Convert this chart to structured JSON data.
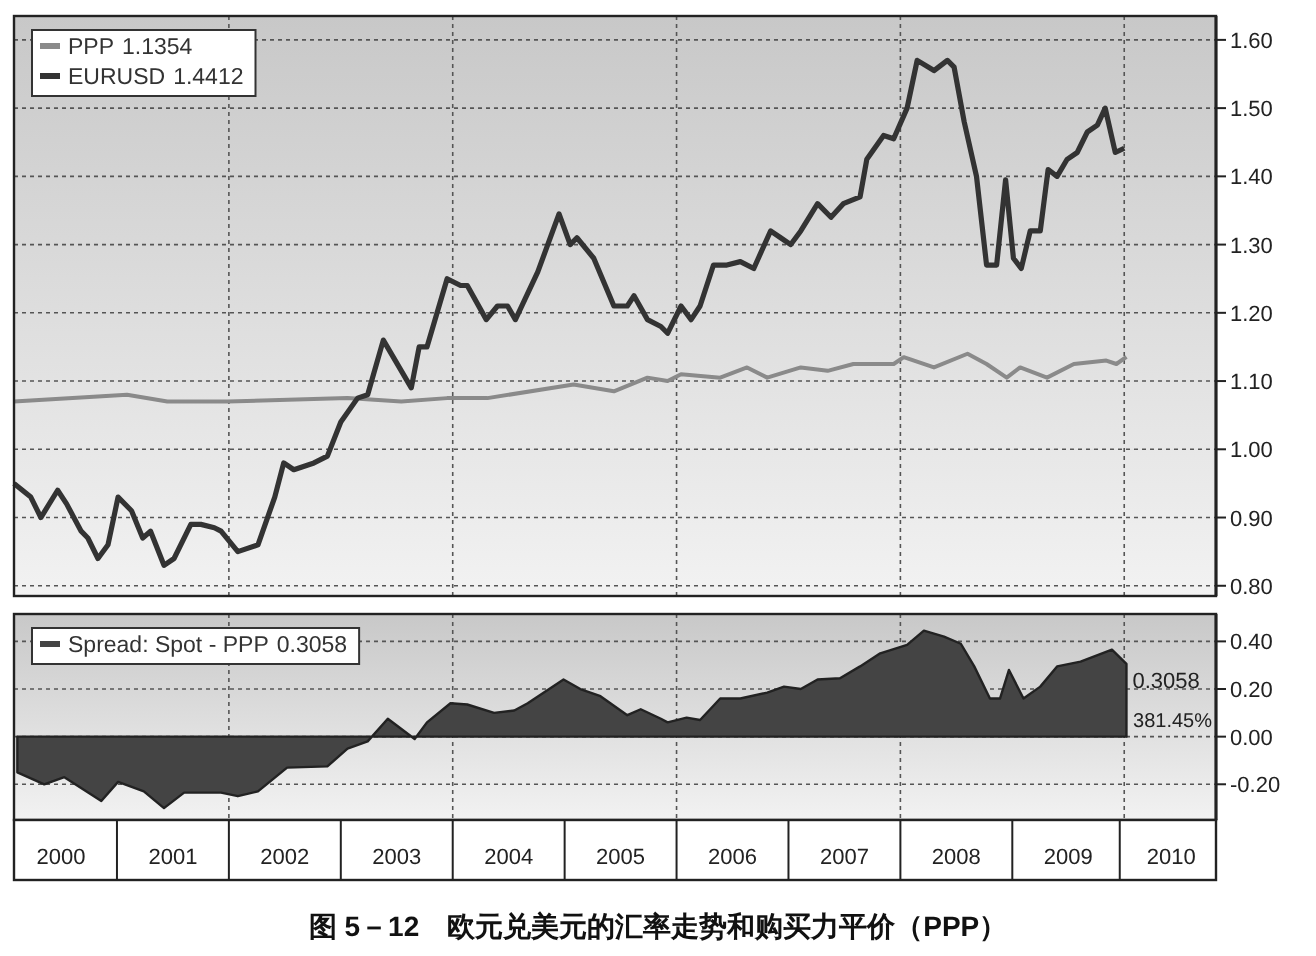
{
  "chart_data": [
    {
      "type": "line",
      "xlim": [
        2000.08,
        2010.82
      ],
      "ylim": [
        0.785,
        1.635
      ],
      "yticks": [
        {
          "value": 0.8,
          "label": "0.80"
        },
        {
          "value": 0.9,
          "label": "0.90"
        },
        {
          "value": 1.0,
          "label": "1.00"
        },
        {
          "value": 1.1,
          "label": "1.10"
        },
        {
          "value": 1.2,
          "label": "1.20"
        },
        {
          "value": 1.3,
          "label": "1.30"
        },
        {
          "value": 1.4,
          "label": "1.40"
        },
        {
          "value": 1.5,
          "label": "1.50"
        },
        {
          "value": 1.6,
          "label": "1.60"
        }
      ],
      "tick_labels": "y",
      "grid": "y",
      "legend": "top left",
      "line_style": "solid",
      "ref_lines": [
        {
          "axis": "x",
          "value": 2002,
          "line_style": "dotted"
        },
        {
          "axis": "x",
          "value": 2004,
          "line_style": "dotted"
        },
        {
          "axis": "x",
          "value": 2006,
          "line_style": "dotted"
        },
        {
          "axis": "x",
          "value": 2008,
          "line_style": "dotted"
        },
        {
          "axis": "x",
          "value": 2010,
          "line_style": "dotted"
        }
      ],
      "annotations": [
        "1.1354",
        "1.4412"
      ],
      "series": [
        {
          "name": "PPP",
          "color": "#8a8a8a",
          "x": [
            2000.08,
            2001.09,
            2001.45,
            2001.99,
            2003.06,
            2003.54,
            2003.95,
            2004.31,
            2005.08,
            2005.44,
            2005.74,
            2005.92,
            2006.04,
            2006.39,
            2006.63,
            2006.81,
            2007.11,
            2007.35,
            2007.58,
            2007.94,
            2008.03,
            2008.3,
            2008.6,
            2008.77,
            2008.95,
            2009.07,
            2009.31,
            2009.55,
            2009.84,
            2009.93,
            2010.02
          ],
          "values": [
            1.07,
            1.08,
            1.07,
            1.07,
            1.075,
            1.07,
            1.075,
            1.075,
            1.095,
            1.085,
            1.105,
            1.1,
            1.11,
            1.105,
            1.12,
            1.105,
            1.12,
            1.115,
            1.125,
            1.125,
            1.135,
            1.12,
            1.14,
            1.125,
            1.105,
            1.12,
            1.105,
            1.125,
            1.13,
            1.125,
            1.1354
          ]
        },
        {
          "name": "EURUSD",
          "color": "#333333",
          "x": [
            2000.08,
            2000.23,
            2000.32,
            2000.47,
            2000.55,
            2000.68,
            2000.74,
            2000.83,
            2000.92,
            2001.01,
            2001.13,
            2001.23,
            2001.3,
            2001.42,
            2001.51,
            2001.66,
            2001.75,
            2001.87,
            2001.93,
            2002.08,
            2002.26,
            2002.41,
            2002.49,
            2002.58,
            2002.76,
            2002.88,
            2003.0,
            2003.15,
            2003.24,
            2003.38,
            2003.63,
            2003.7,
            2003.77,
            2003.95,
            2004.07,
            2004.13,
            2004.3,
            2004.4,
            2004.49,
            2004.56,
            2004.76,
            2004.95,
            2005.05,
            2005.11,
            2005.26,
            2005.44,
            2005.56,
            2005.62,
            2005.74,
            2005.86,
            2005.92,
            2006.04,
            2006.13,
            2006.21,
            2006.33,
            2006.45,
            2006.57,
            2006.69,
            2006.84,
            2006.93,
            2007.02,
            2007.11,
            2007.26,
            2007.38,
            2007.49,
            2007.64,
            2007.7,
            2007.85,
            2007.94,
            2008.06,
            2008.15,
            2008.3,
            2008.42,
            2008.48,
            2008.57,
            2008.68,
            2008.77,
            2008.86,
            2008.94,
            2009.01,
            2009.08,
            2009.16,
            2009.25,
            2009.32,
            2009.4,
            2009.49,
            2009.58,
            2009.67,
            2009.76,
            2009.83,
            2009.92,
            2010.0
          ],
          "values": [
            0.95,
            0.93,
            0.9,
            0.94,
            0.92,
            0.88,
            0.87,
            0.84,
            0.86,
            0.93,
            0.91,
            0.87,
            0.88,
            0.83,
            0.84,
            0.89,
            0.89,
            0.885,
            0.88,
            0.85,
            0.86,
            0.93,
            0.98,
            0.97,
            0.98,
            0.99,
            1.04,
            1.075,
            1.08,
            1.16,
            1.09,
            1.15,
            1.15,
            1.25,
            1.24,
            1.24,
            1.19,
            1.21,
            1.21,
            1.19,
            1.26,
            1.345,
            1.3,
            1.31,
            1.28,
            1.21,
            1.21,
            1.225,
            1.19,
            1.18,
            1.17,
            1.21,
            1.19,
            1.21,
            1.27,
            1.27,
            1.275,
            1.265,
            1.32,
            1.31,
            1.3,
            1.32,
            1.36,
            1.34,
            1.36,
            1.37,
            1.425,
            1.46,
            1.455,
            1.5,
            1.57,
            1.555,
            1.57,
            1.56,
            1.48,
            1.4,
            1.27,
            1.27,
            1.395,
            1.28,
            1.265,
            1.32,
            1.32,
            1.41,
            1.4,
            1.425,
            1.435,
            1.465,
            1.475,
            1.5,
            1.435,
            1.4412
          ]
        }
      ]
    },
    {
      "type": "area",
      "title": "图 5－12　欧元兑美元的汇率走势和购买力平价（PPP）",
      "xlim": [
        2000.08,
        2010.82
      ],
      "ylim": [
        -0.35,
        0.515
      ],
      "xticks": [
        {
          "value": 2000.5,
          "label": "2000"
        },
        {
          "value": 2001.5,
          "label": "2001"
        },
        {
          "value": 2002.5,
          "label": "2002"
        },
        {
          "value": 2003.5,
          "label": "2003"
        },
        {
          "value": 2004.5,
          "label": "2004"
        },
        {
          "value": 2005.5,
          "label": "2005"
        },
        {
          "value": 2006.5,
          "label": "2006"
        },
        {
          "value": 2007.5,
          "label": "2007"
        },
        {
          "value": 2008.5,
          "label": "2008"
        },
        {
          "value": 2009.5,
          "label": "2009"
        },
        {
          "value": 2010.42,
          "label": "2010"
        }
      ],
      "yticks": [
        {
          "value": -0.2,
          "label": "-0.20"
        },
        {
          "value": 0.0,
          "label": "0.00"
        },
        {
          "value": 0.2,
          "label": "0.20"
        },
        {
          "value": 0.4,
          "label": "0.40"
        }
      ],
      "grid": "y",
      "legend": "top left",
      "ref_lines": [
        {
          "axis": "x",
          "value": 2002,
          "line_style": "dotted"
        },
        {
          "axis": "x",
          "value": 2004,
          "line_style": "dotted"
        },
        {
          "axis": "x",
          "value": 2006,
          "line_style": "dotted"
        },
        {
          "axis": "x",
          "value": 2008,
          "line_style": "dotted"
        },
        {
          "axis": "x",
          "value": 2010,
          "line_style": "dotted"
        }
      ],
      "annotations": [
        "0.3058",
        {
          "text": "0.3058",
          "x": 2010.02,
          "y": 0.3058
        },
        "381.45%"
      ],
      "series": [
        {
          "name": "Spread: Spot - PPP",
          "color": "#444444",
          "x": [
            2000.11,
            2000.35,
            2000.53,
            2000.86,
            2001.01,
            2001.24,
            2001.42,
            2001.6,
            2001.93,
            2002.08,
            2002.26,
            2002.52,
            2002.88,
            2003.06,
            2003.24,
            2003.42,
            2003.66,
            2003.77,
            2003.98,
            2004.13,
            2004.37,
            2004.55,
            2004.67,
            2004.99,
            2005.14,
            2005.32,
            2005.56,
            2005.68,
            2005.86,
            2005.92,
            2006.09,
            2006.21,
            2006.39,
            2006.57,
            2006.81,
            2006.96,
            2007.11,
            2007.26,
            2007.46,
            2007.64,
            2007.82,
            2008.06,
            2008.21,
            2008.39,
            2008.54,
            2008.66,
            2008.8,
            2008.89,
            2008.97,
            2009.1,
            2009.25,
            2009.4,
            2009.61,
            2009.89,
            2010.02
          ],
          "values": [
            -0.15,
            -0.2,
            -0.17,
            -0.27,
            -0.19,
            -0.23,
            -0.3,
            -0.235,
            -0.235,
            -0.25,
            -0.23,
            -0.13,
            -0.125,
            -0.05,
            -0.02,
            0.075,
            -0.01,
            0.06,
            0.14,
            0.135,
            0.1,
            0.11,
            0.14,
            0.24,
            0.2,
            0.17,
            0.09,
            0.115,
            0.075,
            0.06,
            0.08,
            0.07,
            0.16,
            0.16,
            0.185,
            0.21,
            0.2,
            0.24,
            0.245,
            0.295,
            0.35,
            0.385,
            0.445,
            0.42,
            0.39,
            0.295,
            0.16,
            0.16,
            0.28,
            0.16,
            0.21,
            0.295,
            0.315,
            0.365,
            0.3058
          ]
        }
      ]
    }
  ]
}
